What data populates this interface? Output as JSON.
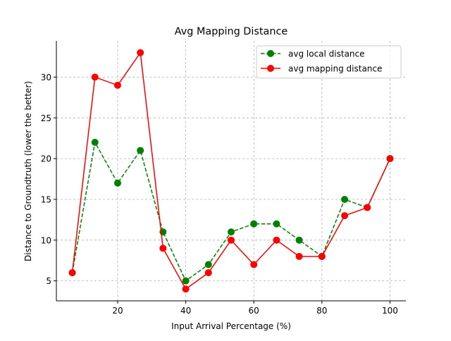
{
  "chart_data": {
    "type": "line",
    "title": "Avg Mapping Distance",
    "xlabel": "Input Arrival Percentage (%)",
    "ylabel": "Distance to Groundtruth (lower the better)",
    "xlim": [
      2.0,
      104.67
    ],
    "ylim": [
      2.55,
      34.45
    ],
    "xticks": [
      20,
      40,
      60,
      80,
      100
    ],
    "yticks": [
      5,
      10,
      15,
      20,
      25,
      30
    ],
    "x": [
      6.67,
      13.33,
      20.0,
      26.67,
      33.33,
      40.0,
      46.67,
      53.33,
      60.0,
      66.67,
      73.33,
      80.0,
      86.67,
      93.33,
      100.0
    ],
    "series": [
      {
        "name": "avg local distance",
        "color": "#008000",
        "line_style": "dashed",
        "marker": "circle",
        "values": [
          6,
          22,
          17,
          21,
          11,
          5,
          7,
          11,
          12,
          12,
          10,
          8,
          15,
          14,
          20
        ]
      },
      {
        "name": "avg mapping distance",
        "color": "#ff0000",
        "line_style": "solid",
        "marker": "circle",
        "values": [
          6,
          30,
          29,
          33,
          9,
          4,
          6,
          10,
          7,
          10,
          8,
          8,
          13,
          14,
          20
        ]
      }
    ],
    "grid": true,
    "legend_position": "top-right"
  }
}
